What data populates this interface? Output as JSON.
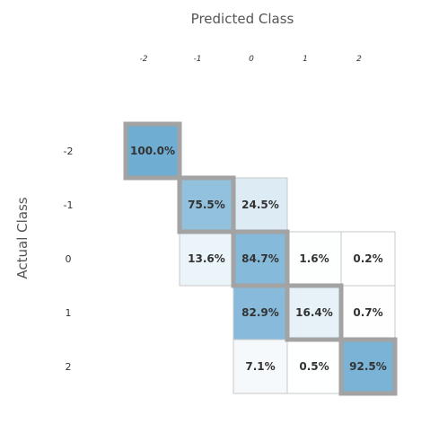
{
  "chart_data": {
    "type": "heatmap",
    "title": "",
    "xlabel": "Predicted Class",
    "ylabel": "Actual Class",
    "x_categories": [
      "-2",
      "-1",
      "0",
      "1",
      "2"
    ],
    "y_categories": [
      "-2",
      "-1",
      "0",
      "1",
      "2"
    ],
    "values": [
      [
        100.0,
        null,
        null,
        null,
        null
      ],
      [
        null,
        75.5,
        24.5,
        null,
        null
      ],
      [
        null,
        13.6,
        84.7,
        1.6,
        0.2
      ],
      [
        null,
        null,
        82.9,
        16.4,
        0.7
      ],
      [
        null,
        null,
        7.1,
        0.5,
        92.5
      ]
    ],
    "labels": [
      [
        "100.0%",
        "",
        "",
        "",
        ""
      ],
      [
        "",
        "75.5%",
        "24.5%",
        "",
        ""
      ],
      [
        "",
        "13.6%",
        "84.7%",
        "1.6%",
        "0.2%"
      ],
      [
        "",
        "",
        "82.9%",
        "16.4%",
        "0.7%"
      ],
      [
        "",
        "",
        "7.1%",
        "0.5%",
        "92.5%"
      ]
    ],
    "highlight_diagonal": true,
    "colors": {
      "low": "#ffffff",
      "high": "#6fadd3",
      "highlight_border": "#a3a3a3",
      "cell_border": "#c8c8c8"
    }
  }
}
